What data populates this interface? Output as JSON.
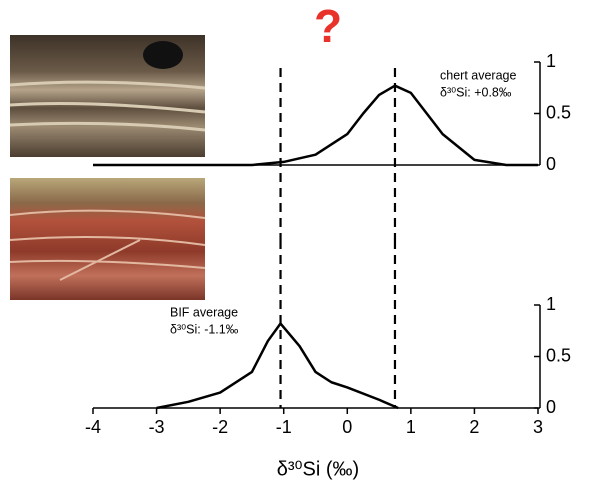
{
  "annotation": "?",
  "chart_data": [
    {
      "type": "line",
      "annotation_lines": [
        "chert average",
        "δ³⁰Si: +0.8‰"
      ],
      "x": [
        -4,
        -3,
        -2,
        -1.5,
        -1,
        -0.5,
        0,
        0.25,
        0.5,
        0.75,
        1,
        1.25,
        1.5,
        2,
        2.5,
        3
      ],
      "series": [
        {
          "color": "#000000",
          "values": [
            0,
            0,
            0,
            0,
            0.03,
            0.1,
            0.3,
            0.5,
            0.68,
            0.77,
            0.7,
            0.5,
            0.3,
            0.05,
            0,
            0
          ]
        }
      ],
      "xlim": [
        -4,
        3
      ],
      "ylim": [
        0,
        1
      ],
      "yticks": [
        0,
        0.5,
        1
      ],
      "vlines": [
        -1.05,
        0.75
      ]
    },
    {
      "type": "line",
      "annotation_lines": [
        "BIF average",
        "δ³⁰Si: -1.1‰"
      ],
      "x": [
        -3,
        -2.5,
        -2,
        -1.5,
        -1.25,
        -1.05,
        -0.75,
        -0.5,
        -0.25,
        0,
        0.5,
        0.8
      ],
      "series": [
        {
          "color": "#000000",
          "values": [
            0,
            0.06,
            0.15,
            0.35,
            0.65,
            0.82,
            0.6,
            0.35,
            0.25,
            0.2,
            0.08,
            0
          ]
        }
      ],
      "xlim": [
        -4,
        3
      ],
      "xticks": [
        -4,
        -3,
        -2,
        -1,
        0,
        1,
        2,
        3
      ],
      "x_label": "δ³⁰Si (‰)",
      "ylim": [
        0,
        1
      ],
      "yticks": [
        0,
        0.5,
        1
      ],
      "vlines": [
        -1.05,
        0.75
      ]
    }
  ]
}
